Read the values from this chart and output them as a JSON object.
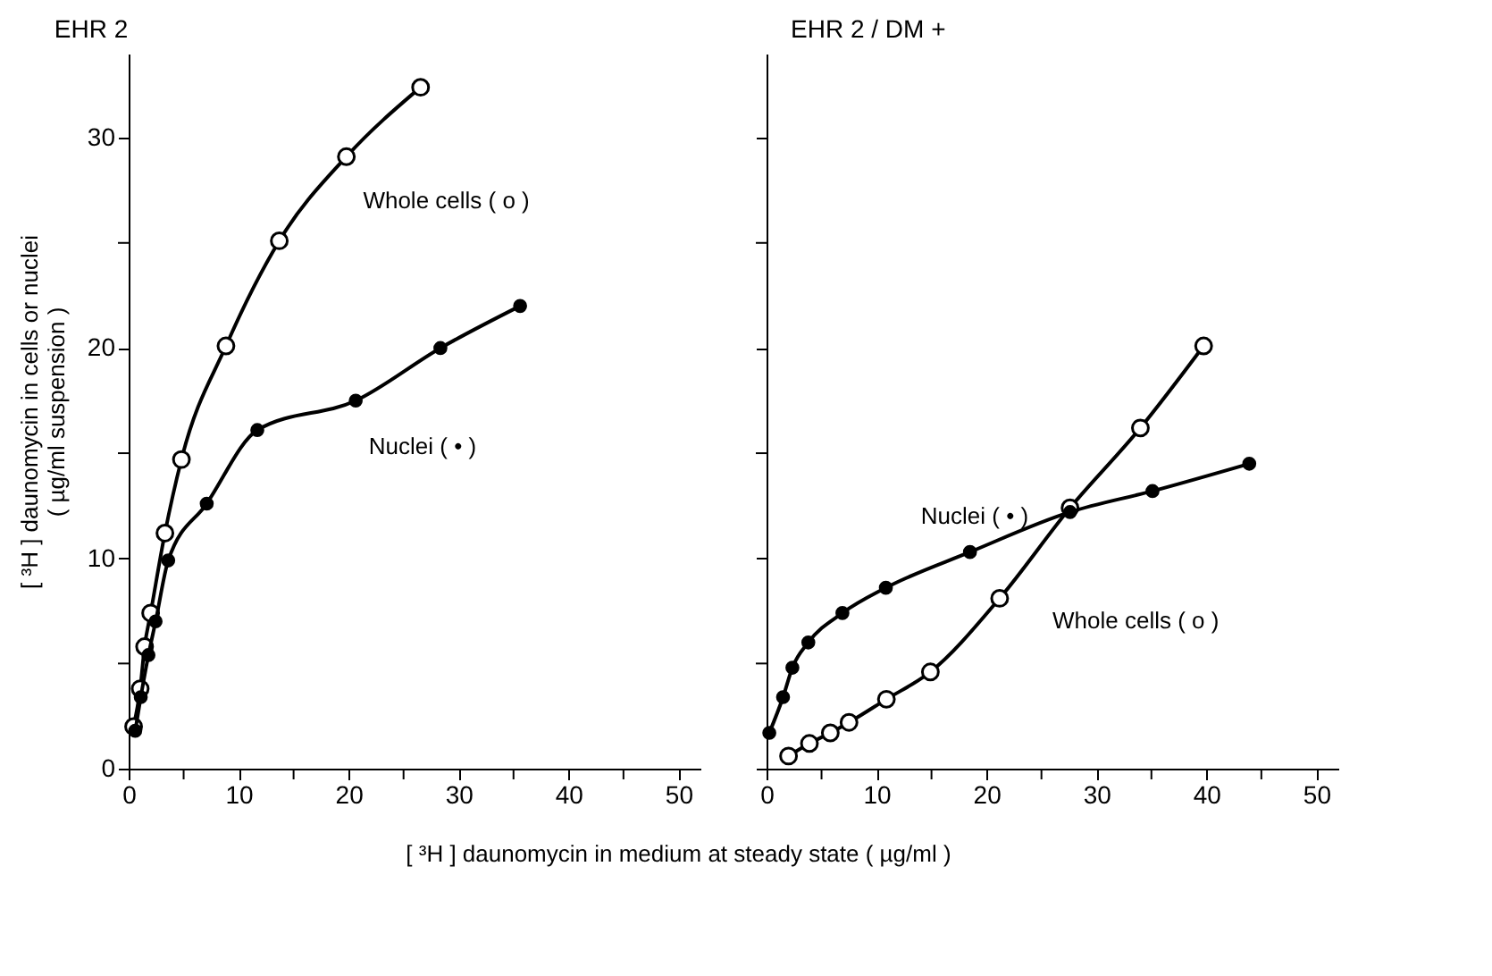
{
  "chart_data": [
    {
      "type": "line",
      "title": "EHR 2",
      "xlabel": "[ ³H ] daunomycin in medium at steady state ( µg/ml )",
      "ylabel": "[ ³H ] daunomycin in cells or nuclei\n( µg/ml suspension )",
      "marker": "circle",
      "line_style": "solid",
      "grid": false,
      "xlim": [
        0,
        52
      ],
      "xticks": [
        0,
        {
          "value": 5,
          "label": null
        },
        10,
        {
          "value": 15,
          "label": null
        },
        20,
        {
          "value": 25,
          "label": null
        },
        30,
        {
          "value": 35,
          "label": null
        },
        40,
        {
          "value": 45,
          "label": null
        },
        50
      ],
      "ylim": [
        0,
        34
      ],
      "yticks": [
        0,
        {
          "value": 5,
          "label": null
        },
        10,
        {
          "value": 15,
          "label": null
        },
        20,
        {
          "value": 25,
          "label": null
        },
        30
      ],
      "series": [
        {
          "name": "Whole cells ( o )",
          "color": "#000000",
          "x": [
            0.45,
            1.05,
            1.45,
            2.0,
            3.3,
            4.8,
            8.85,
            13.7,
            19.8,
            26.55
          ],
          "values": [
            2.0,
            3.8,
            5.8,
            7.4,
            11.2,
            14.7,
            20.1,
            25.1,
            29.1,
            32.4
          ]
        },
        {
          "name": "Nuclei ( • )",
          "color": "#000000",
          "x": [
            0.6,
            1.1,
            1.8,
            2.45,
            3.6,
            7.1,
            11.7,
            20.65,
            28.35,
            35.6
          ],
          "values": [
            1.8,
            3.4,
            5.4,
            7.0,
            9.9,
            12.6,
            16.1,
            17.5,
            20.0,
            22.0
          ]
        }
      ]
    },
    {
      "type": "line",
      "title": "EHR 2 / DM +",
      "marker": "circle",
      "line_style": "solid",
      "grid": false,
      "tick_labels": "x",
      "xlim": [
        0,
        52
      ],
      "xticks": [
        0,
        {
          "value": 5,
          "label": null
        },
        10,
        {
          "value": 15,
          "label": null
        },
        20,
        {
          "value": 25,
          "label": null
        },
        30,
        {
          "value": 35,
          "label": null
        },
        40,
        {
          "value": 45,
          "label": null
        },
        50
      ],
      "ylim": [
        0,
        34
      ],
      "yticks": [
        0,
        {
          "value": 5,
          "label": null
        },
        10,
        {
          "value": 15,
          "label": null
        },
        20,
        {
          "value": 25,
          "label": null
        },
        30
      ],
      "series": [
        {
          "name": "Whole cells ( o )",
          "color": "#000000",
          "x": [
            2.0,
            3.9,
            5.8,
            7.5,
            10.9,
            14.9,
            21.2,
            27.6,
            34.0,
            39.75
          ],
          "values": [
            0.6,
            1.2,
            1.7,
            2.2,
            3.3,
            4.6,
            8.1,
            12.4,
            16.2,
            20.1
          ]
        },
        {
          "name": "Nuclei ( • )",
          "color": "#000000",
          "x": [
            0.25,
            1.5,
            2.35,
            3.8,
            6.9,
            10.85,
            18.5,
            27.6,
            35.1,
            43.9
          ],
          "values": [
            1.7,
            3.4,
            4.8,
            6.0,
            7.4,
            8.6,
            10.3,
            12.2,
            13.2,
            14.5
          ]
        }
      ]
    }
  ]
}
